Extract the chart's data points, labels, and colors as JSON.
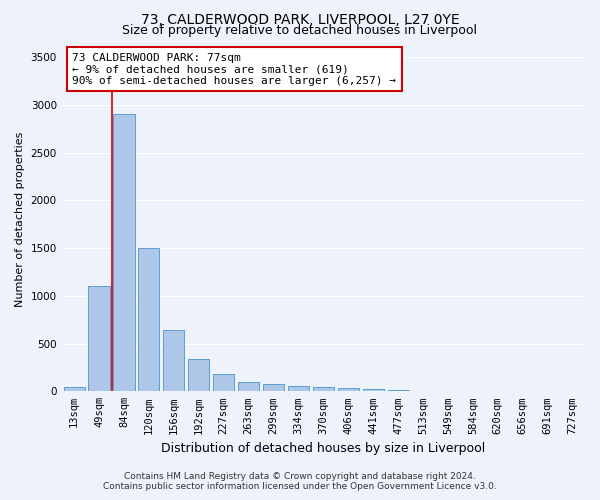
{
  "title": "73, CALDERWOOD PARK, LIVERPOOL, L27 0YE",
  "subtitle": "Size of property relative to detached houses in Liverpool",
  "xlabel": "Distribution of detached houses by size in Liverpool",
  "ylabel": "Number of detached properties",
  "footer_line1": "Contains HM Land Registry data © Crown copyright and database right 2024.",
  "footer_line2": "Contains public sector information licensed under the Open Government Licence v3.0.",
  "bar_labels": [
    "13sqm",
    "49sqm",
    "84sqm",
    "120sqm",
    "156sqm",
    "192sqm",
    "227sqm",
    "263sqm",
    "299sqm",
    "334sqm",
    "370sqm",
    "406sqm",
    "441sqm",
    "477sqm",
    "513sqm",
    "549sqm",
    "584sqm",
    "620sqm",
    "656sqm",
    "691sqm",
    "727sqm"
  ],
  "bar_values": [
    50,
    1100,
    2900,
    1500,
    640,
    340,
    185,
    95,
    80,
    60,
    45,
    30,
    20,
    10,
    5,
    3,
    2,
    2,
    1,
    1,
    0
  ],
  "bar_color": "#aec6e8",
  "bar_edge_color": "#5a9fd4",
  "annotation_line1": "73 CALDERWOOD PARK: 77sqm",
  "annotation_line2": "← 9% of detached houses are smaller (619)",
  "annotation_line3": "90% of semi-detached houses are larger (6,257) →",
  "annotation_box_color": "#ffffff",
  "annotation_box_edge_color": "#cc0000",
  "vline_color": "#cc0000",
  "vline_x_index": 1.5,
  "ylim": [
    0,
    3600
  ],
  "yticks": [
    0,
    500,
    1000,
    1500,
    2000,
    2500,
    3000,
    3500
  ],
  "bg_color": "#eef2fa",
  "grid_color": "#ffffff",
  "title_fontsize": 10,
  "subtitle_fontsize": 9,
  "xlabel_fontsize": 9,
  "ylabel_fontsize": 8,
  "tick_fontsize": 7.5,
  "annotation_fontsize": 8,
  "footer_fontsize": 6.5
}
